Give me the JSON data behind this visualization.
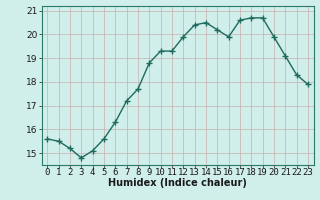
{
  "x": [
    0,
    1,
    2,
    3,
    4,
    5,
    6,
    7,
    8,
    9,
    10,
    11,
    12,
    13,
    14,
    15,
    16,
    17,
    18,
    19,
    20,
    21,
    22,
    23
  ],
  "y": [
    15.6,
    15.5,
    15.2,
    14.8,
    15.1,
    15.6,
    16.3,
    17.2,
    17.7,
    18.8,
    19.3,
    19.3,
    19.9,
    20.4,
    20.5,
    20.2,
    19.9,
    20.6,
    20.7,
    20.7,
    19.9,
    19.1,
    18.3,
    17.9
  ],
  "xlabel": "Humidex (Indice chaleur)",
  "ylim": [
    14.5,
    21.2
  ],
  "xlim": [
    -0.5,
    23.5
  ],
  "yticks": [
    15,
    16,
    17,
    18,
    19,
    20,
    21
  ],
  "xticks": [
    0,
    1,
    2,
    3,
    4,
    5,
    6,
    7,
    8,
    9,
    10,
    11,
    12,
    13,
    14,
    15,
    16,
    17,
    18,
    19,
    20,
    21,
    22,
    23
  ],
  "line_color": "#1e6b5e",
  "marker_color": "#1e6b5e",
  "bg_color": "#d0eeea",
  "grid_color_v": "#c8b0b0",
  "grid_color_h": "#c8b0b0",
  "xlabel_fontsize": 7,
  "tick_fontsize": 6.5,
  "linewidth": 1.0,
  "markersize": 4
}
